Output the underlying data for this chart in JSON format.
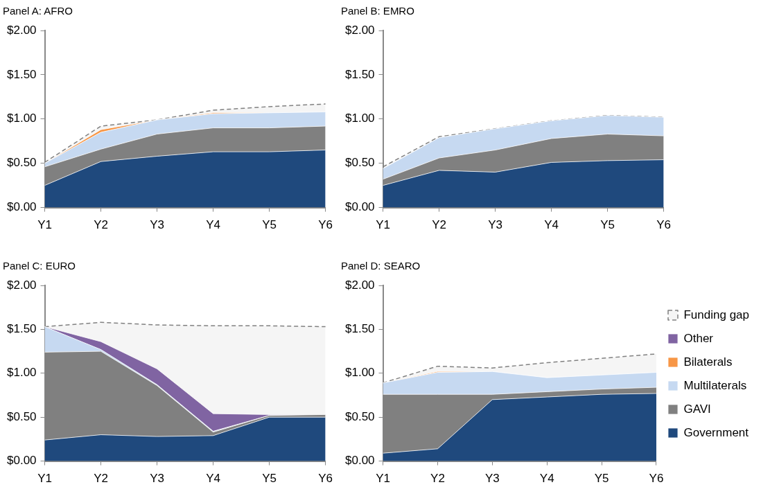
{
  "chart_data": [
    {
      "type": "area",
      "title": "Panel A: AFRO",
      "stacked": true,
      "grid": false,
      "legend": false,
      "categories": [
        "Y1",
        "Y2",
        "Y3",
        "Y4",
        "Y5",
        "Y6"
      ],
      "ylim": [
        0,
        2
      ],
      "yticks": [
        {
          "value": 0,
          "label": "$0.00"
        },
        {
          "value": 0.5,
          "label": "$0.50"
        },
        {
          "value": 1,
          "label": "$1.00"
        },
        {
          "value": 1.5,
          "label": "$1.50"
        },
        {
          "value": 2,
          "label": "$2.00"
        }
      ],
      "series": [
        {
          "color": "#1f497d",
          "values": [
            0.25,
            0.52,
            0.58,
            0.63,
            0.63,
            0.65
          ]
        },
        {
          "color": "#808080",
          "values": [
            0.21,
            0.14,
            0.25,
            0.27,
            0.27,
            0.27
          ]
        },
        {
          "color": "#c6d9f1",
          "values": [
            0.04,
            0.19,
            0.16,
            0.16,
            0.17,
            0.16
          ]
        },
        {
          "color": "#f79646",
          "values": [
            0,
            0.03,
            0,
            0.01,
            0,
            0
          ]
        },
        {
          "color": "#808080",
          "line_style": "dashed",
          "values": [
            0.01,
            0.04,
            0,
            0.03,
            0.07,
            0.09
          ]
        }
      ]
    },
    {
      "type": "area",
      "title": "Panel B: EMRO",
      "stacked": true,
      "grid": false,
      "legend": false,
      "categories": [
        "Y1",
        "Y2",
        "Y3",
        "Y4",
        "Y5",
        "Y6"
      ],
      "ylim": [
        0,
        2
      ],
      "yticks": [
        {
          "value": 0,
          "label": "$0.00"
        },
        {
          "value": 0.5,
          "label": "$0.50"
        },
        {
          "value": 1,
          "label": "$1.00"
        },
        {
          "value": 1.5,
          "label": "$1.50"
        },
        {
          "value": 2,
          "label": "$2.00"
        }
      ],
      "series": [
        {
          "color": "#1f497d",
          "values": [
            0.25,
            0.42,
            0.4,
            0.51,
            0.53,
            0.54
          ]
        },
        {
          "color": "#808080",
          "values": [
            0.07,
            0.14,
            0.25,
            0.27,
            0.3,
            0.27
          ]
        },
        {
          "color": "#c6d9f1",
          "values": [
            0.12,
            0.23,
            0.24,
            0.2,
            0.21,
            0.21
          ]
        },
        {
          "color": "#808080",
          "line_style": "dashed",
          "values": [
            0.02,
            0.01,
            0,
            0,
            0,
            0
          ]
        }
      ]
    },
    {
      "type": "area",
      "title": "Panel C: EURO",
      "stacked": true,
      "grid": false,
      "legend": false,
      "categories": [
        "Y1",
        "Y2",
        "Y3",
        "Y4",
        "Y5",
        "Y6"
      ],
      "ylim": [
        0,
        2
      ],
      "yticks": [
        {
          "value": 0,
          "label": "$0.00"
        },
        {
          "value": 0.5,
          "label": "$0.50"
        },
        {
          "value": 1,
          "label": "$1.00"
        },
        {
          "value": 1.5,
          "label": "$1.50"
        },
        {
          "value": 2,
          "label": "$2.00"
        }
      ],
      "series": [
        {
          "color": "#1f497d",
          "values": [
            0.24,
            0.3,
            0.28,
            0.29,
            0.5,
            0.5
          ]
        },
        {
          "color": "#808080",
          "values": [
            1.0,
            0.95,
            0.58,
            0.04,
            0.02,
            0.03
          ]
        },
        {
          "color": "#c6d9f1",
          "values": [
            0.29,
            0.02,
            0.01,
            0.01,
            0,
            0
          ]
        },
        {
          "color": "#8064a2",
          "values": [
            0,
            0.09,
            0.18,
            0.2,
            0.01,
            0
          ]
        },
        {
          "color": "#808080",
          "line_style": "dashed",
          "values": [
            0,
            0.22,
            0.5,
            1.0,
            1.01,
            1.0
          ]
        }
      ]
    },
    {
      "type": "area",
      "title": "Panel D: SEARO",
      "stacked": true,
      "grid": false,
      "legend": "right",
      "categories": [
        "Y1",
        "Y2",
        "Y3",
        "Y4",
        "Y5",
        "Y6"
      ],
      "ylim": [
        0,
        2
      ],
      "yticks": [
        {
          "value": 0,
          "label": "$0.00"
        },
        {
          "value": 0.5,
          "label": "$0.50"
        },
        {
          "value": 1,
          "label": "$1.00"
        },
        {
          "value": 1.5,
          "label": "$1.50"
        },
        {
          "value": 2,
          "label": "$2.00"
        }
      ],
      "series": [
        {
          "name": "Government",
          "color": "#1f497d",
          "values": [
            0.09,
            0.14,
            0.7,
            0.73,
            0.76,
            0.77
          ]
        },
        {
          "name": "GAVI",
          "color": "#808080",
          "values": [
            0.67,
            0.62,
            0.06,
            0.06,
            0.06,
            0.07
          ]
        },
        {
          "name": "Multilaterals",
          "color": "#c6d9f1",
          "values": [
            0.13,
            0.25,
            0.26,
            0.16,
            0.16,
            0.17
          ]
        },
        {
          "name": "Bilaterals",
          "color": "#f79646",
          "values": [
            0,
            0.01,
            0,
            0,
            0,
            0
          ]
        },
        {
          "name": "Other",
          "color": "#8064a2",
          "values": [
            null,
            null,
            null,
            null,
            null,
            null
          ]
        },
        {
          "name": "Funding gap",
          "color": "#808080",
          "line_style": "dashed",
          "values": [
            0,
            0.06,
            0.04,
            0.17,
            0.19,
            0.21
          ]
        }
      ]
    }
  ]
}
